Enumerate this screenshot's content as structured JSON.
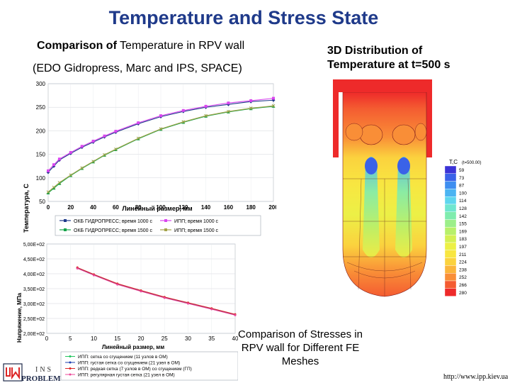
{
  "header": {
    "title": "Temperature and Stress State",
    "subtitle_bold": "Comparison of",
    "subtitle_rest": " Temperature in RPV wall",
    "subtitle2": "(EDO Gidropress, Marc and IPS, SPACE)",
    "right_title_line1": "3D Distribution of",
    "right_title_line2": "Temperature at t=500 s",
    "stress_caption": "Comparison of Stresses in RPV wall for Different FE Meshes"
  },
  "footer": {
    "url": "http://www.ipp.kiev.ua",
    "institute": "INS",
    "problems": "PROBLEM"
  },
  "legend_temp": {
    "items": [
      "ОКБ ГИДРОПРЕСС; время 1000 с",
      "ИПП; время 1000 с",
      "ОКБ ГИДРОПРЕСС; время 1500 с",
      "ИПП; время 1500 с"
    ],
    "colors": [
      "#1f3a8a",
      "#d946ef",
      "#16a34a",
      "#a3a34a"
    ]
  },
  "legend_stress": {
    "items": [
      "ИПП: сетка со сгущением (11 узлов в ОМ)",
      "ИПП: густая сетка со сгущением (21 узел в ОМ)",
      "ИПП: редкая сетка (7 узлов в ОМ) со сгущением (ГП)",
      "ИПП: регулярная густая сетка (21 узел в ОМ)"
    ],
    "colors": [
      "#22c55e",
      "#1e40af",
      "#dc2626",
      "#ec4899"
    ]
  },
  "colorbar": {
    "title": "T,C",
    "subtitle": "(t=500.00)",
    "labels": [
      "59",
      "73",
      "87",
      "100",
      "114",
      "128",
      "142",
      "155",
      "169",
      "183",
      "197",
      "211",
      "224",
      "238",
      "252",
      "266",
      "280"
    ],
    "colors": [
      "#3b33d6",
      "#3a62e8",
      "#3e8ef0",
      "#4bb4f2",
      "#5fd6ee",
      "#6fe6cf",
      "#7fecae",
      "#9cef8a",
      "#b8f06a",
      "#d4f052",
      "#ecf046",
      "#f8e641",
      "#fbd23e",
      "#fbb53b",
      "#f98e37",
      "#f45c31",
      "#ee2a2a"
    ]
  },
  "chart_data": [
    {
      "type": "line",
      "title": "",
      "xlabel": "Линейный размер, мм",
      "ylabel": "Температура, С",
      "xlim": [
        0,
        200
      ],
      "ylim": [
        50,
        300
      ],
      "xticks": [
        0,
        20,
        40,
        60,
        80,
        100,
        120,
        140,
        160,
        180,
        200
      ],
      "yticks": [
        50,
        100,
        150,
        200,
        250,
        300
      ],
      "grid": true,
      "legend": "bottom",
      "series": [
        {
          "name": "ОКБ ГИДРОПРЕСС; время 1000 с",
          "x": [
            0,
            5,
            10,
            20,
            30,
            40,
            50,
            60,
            80,
            100,
            120,
            140,
            160,
            180,
            200
          ],
          "y": [
            112,
            125,
            138,
            152,
            165,
            176,
            187,
            197,
            215,
            230,
            241,
            250,
            256,
            262,
            265
          ]
        },
        {
          "name": "ИПП; время 1000 с",
          "x": [
            0,
            5,
            10,
            20,
            30,
            40,
            50,
            60,
            80,
            100,
            120,
            140,
            160,
            180,
            200
          ],
          "y": [
            115,
            128,
            140,
            154,
            167,
            178,
            189,
            199,
            217,
            232,
            243,
            252,
            259,
            264,
            269
          ]
        },
        {
          "name": "ОКБ ГИДРОПРЕСС; время 1500 с",
          "x": [
            0,
            5,
            10,
            20,
            30,
            40,
            50,
            60,
            80,
            100,
            120,
            140,
            160,
            180,
            200
          ],
          "y": [
            68,
            78,
            88,
            105,
            120,
            134,
            148,
            160,
            183,
            203,
            218,
            231,
            240,
            247,
            252
          ]
        },
        {
          "name": "ИПП; время 1500 с",
          "x": [
            0,
            5,
            10,
            20,
            30,
            40,
            50,
            60,
            80,
            100,
            120,
            140,
            160,
            180,
            200
          ],
          "y": [
            70,
            80,
            90,
            106,
            121,
            135,
            149,
            161,
            184,
            204,
            219,
            232,
            241,
            248,
            253
          ]
        }
      ]
    },
    {
      "type": "line",
      "title": "",
      "xlabel": "Линейный размер, мм",
      "ylabel": "Напряжение, МПа",
      "xlim": [
        0,
        40
      ],
      "ylim": [
        200,
        500
      ],
      "xticks": [
        0,
        5,
        10,
        15,
        20,
        25,
        30,
        35,
        40
      ],
      "yticks": [
        "2,00E+02",
        "2,50E+02",
        "3,00E+02",
        "3,50E+02",
        "4,00E+02",
        "4,50E+02",
        "5,00E+02"
      ],
      "grid": true,
      "legend": "bottom",
      "series": [
        {
          "name": "ИПП: сетка со сгущением (11 узлов в ОМ)",
          "x": [
            6.5,
            10,
            15,
            20,
            25,
            30,
            35,
            40
          ],
          "y": [
            420,
            397,
            366,
            343,
            321,
            302,
            283,
            263
          ]
        },
        {
          "name": "ИПП: густая сетка со сгущением (21 узел в ОМ)",
          "x": [
            6.5,
            10,
            15,
            20,
            25,
            30,
            35,
            40
          ],
          "y": [
            419,
            396,
            365,
            342,
            320,
            301,
            282,
            262
          ]
        },
        {
          "name": "ИПП: редкая сетка (7 узлов в ОМ) со сгущением (ГП)",
          "x": [
            6.5,
            10,
            15,
            20,
            25,
            30,
            35,
            40
          ],
          "y": [
            421,
            398,
            367,
            344,
            322,
            303,
            284,
            264
          ]
        },
        {
          "name": "ИПП: регулярная густая сетка (21 узел в ОМ)",
          "x": [
            6.5,
            10,
            15,
            20,
            25,
            30,
            35,
            40
          ],
          "y": [
            418,
            395,
            364,
            341,
            319,
            300,
            281,
            261
          ]
        }
      ]
    }
  ]
}
